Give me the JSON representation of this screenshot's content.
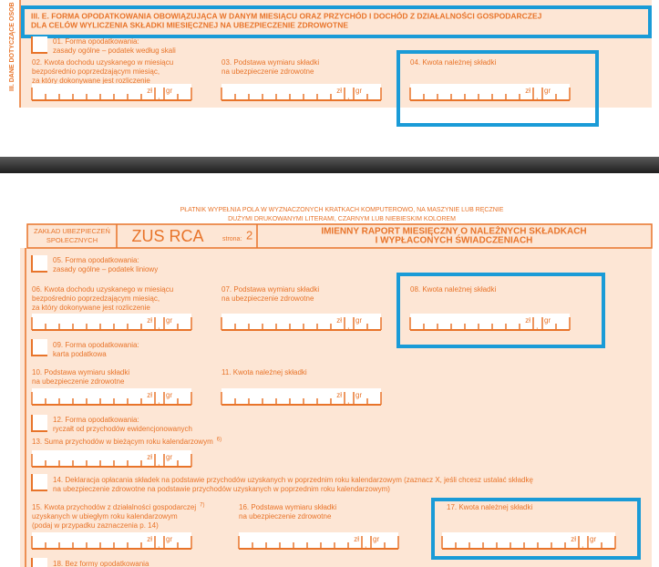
{
  "side_label": "III. DANE DOTYCZĄCE OSOB",
  "section_title": [
    "III. E. FORMA OPODATKOWANIA OBOWIĄZUJĄCA W DANYM MIESIĄCU ORAZ PRZYCHÓD I DOCHÓD Z DZIAŁALNOŚCI GOSPODARCZEJ",
    "DLA CELÓW WYLICZENIA SKŁADKI MIESIĘCZNEJ NA UBEZPIECZENIE ZDROWOTNE"
  ],
  "currency": {
    "zl": "zł",
    "gr": "gr"
  },
  "top_fields": [
    {
      "label": [
        "01. Forma opodatkowania:",
        "zasady ogólne – podatek według skali"
      ]
    },
    {
      "label": [
        "02. Kwota dochodu uzyskanego w miesiącu",
        "bezpośrednio poprzedzającym miesiąc,",
        "za który dokonywane jest rozliczenie"
      ]
    },
    {
      "label": [
        "03. Podstawa wymiaru składki",
        "na ubezpieczenie zdrowotne"
      ]
    },
    {
      "label": [
        "04. Kwota należnej składki"
      ]
    }
  ],
  "instructions": [
    "PŁATNIK WYPEŁNIA POLA W WYZNACZONYCH KRATKACH KOMPUTEROWO, NA MASZYNIE LUB RĘCZNIE",
    "DUŻYMI DRUKOWANYMI LITERAMI, CZARNYM LUB NIEBIESKIM KOLOREM"
  ],
  "header": {
    "institution": [
      "ZAKŁAD UBEZPIECZEŃ",
      "SPOŁECZNYCH"
    ],
    "form": "ZUS RCA",
    "page_label": "strona:",
    "page": "2",
    "title": [
      "IMIENNY RAPORT MIESIĘCZNY O NALEŻNYCH SKŁADKACH",
      "I WYPŁACONYCH ŚWIADCZENIACH"
    ]
  },
  "fields": [
    {
      "label": [
        "05. Forma opodatkowania:",
        "zasady ogólne – podatek liniowy"
      ]
    },
    {
      "label": [
        "06. Kwota dochodu uzyskanego w miesiącu",
        "bezpośrednio poprzedzającym miesiąc,",
        "za który dokonywane jest rozliczenie"
      ]
    },
    {
      "label": [
        "07. Podstawa wymiaru składki",
        "na ubezpieczenie zdrowotne"
      ]
    },
    {
      "label": [
        "08. Kwota należnej składki"
      ]
    },
    {
      "label": [
        "09. Forma opodatkowania:",
        "karta podatkowa"
      ]
    },
    {
      "label": [
        "10. Podstawa wymiaru składki",
        "na ubezpieczenie zdrowotne"
      ]
    },
    {
      "label": [
        "11. Kwota należnej składki"
      ]
    },
    {
      "label": [
        "12. Forma opodatkowania:",
        "ryczałt od przychodów ewidencjonowanych"
      ]
    },
    {
      "label": [
        "13. Suma przychodów w bieżącym roku kalendarzowym"
      ],
      "note": "6)"
    },
    {
      "label": [
        "14. Deklaracja opłacania składek na podstawie przychodów uzyskanych w poprzednim roku kalendarzowym (zaznacz X, jeśli chcesz ustalać składkę",
        "na ubezpieczenie zdrowotne na podstawie przychodów uzyskanych w poprzednim roku kalendarzowym)"
      ]
    },
    {
      "label": [
        "15. Kwota przychodów z działalności gospodarczej",
        "uzyskanych w ubiegłym roku kalendarzowym",
        "(podaj w przypadku zaznaczenia p. 14)"
      ],
      "note": "7)"
    },
    {
      "label": [
        "16. Podstawa wymiaru składki",
        "na ubezpieczenie zdrowotne"
      ]
    },
    {
      "label": [
        "17. Kwota należnej składki"
      ]
    },
    {
      "label": [
        "18. Bez formy opodatkowania"
      ]
    }
  ]
}
